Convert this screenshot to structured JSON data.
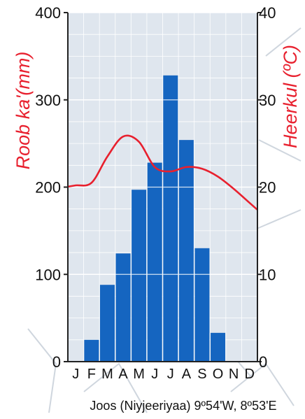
{
  "colors": {
    "bar": "#1565c0",
    "temperature_line": "#e8202e",
    "plot_background": "#dfe6ee",
    "grid": "#ffffff",
    "axis_text": "#111111",
    "axis_label_red": "#e8202e"
  },
  "chart_data": {
    "type": "bar",
    "categories": [
      "J",
      "F",
      "M",
      "A",
      "M",
      "J",
      "J",
      "A",
      "S",
      "O",
      "N",
      "D"
    ],
    "series": [
      {
        "values": [
          0,
          25,
          88,
          124,
          197,
          228,
          328,
          254,
          130,
          33,
          0,
          0
        ],
        "color": "#1565c0",
        "axis": "left"
      },
      {
        "type": "line",
        "values": [
          20.2,
          20.5,
          23.5,
          25.8,
          25.2,
          22.3,
          21.8,
          22.3,
          22.1,
          21.2,
          19.8,
          18.2
        ],
        "color": "#e8202e",
        "axis": "right"
      }
    ],
    "ylabel_left": "Roob ka'(mm)",
    "ylabel_right": "Heerkul (ºC)",
    "ylim_left": [
      0,
      400
    ],
    "ylim_right": [
      0,
      40
    ],
    "yticks_left": [
      "0",
      "100",
      "200",
      "300",
      "400"
    ],
    "yticks_right": [
      "0",
      "10",
      "20",
      "30",
      "40"
    ],
    "footer": "Joos (Niyjeeriyaa) 9º54'W, 8º53'E",
    "grid": true
  }
}
